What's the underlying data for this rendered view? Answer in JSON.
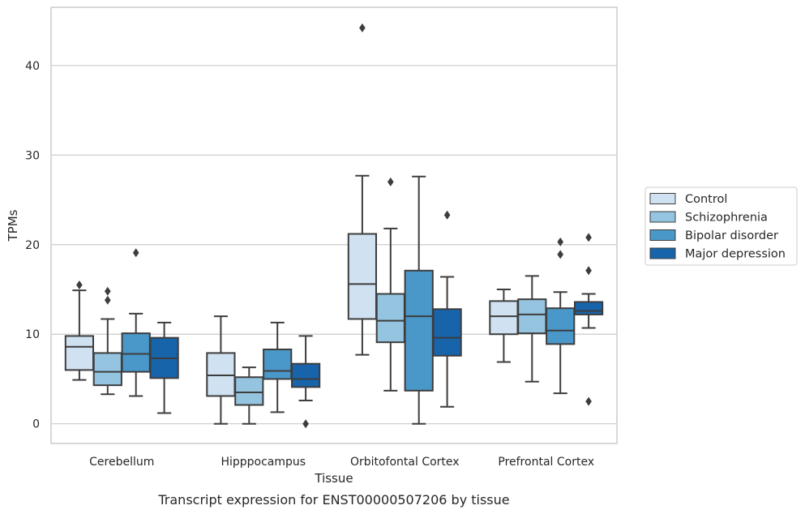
{
  "chart_data": {
    "type": "box",
    "caption": "Transcript expression for ENST00000507206 by tissue",
    "xlabel": "Tissue",
    "ylabel": "TPMs",
    "ylim": [
      -2.2,
      46.5
    ],
    "yticks": [
      0,
      10,
      20,
      30,
      40
    ],
    "grid": "horizontal",
    "legend_position": "right",
    "categories": [
      "Cerebellum",
      "Hipppocampus",
      "Orbitofontal Cortex",
      "Prefrontal Cortex"
    ],
    "series": [
      {
        "name": "Control",
        "color": "#d0e1f2",
        "boxes": [
          {
            "whislo": 4.9,
            "q1": 6.0,
            "med": 8.6,
            "q3": 9.8,
            "whishi": 14.9,
            "fliers": [
              15.5
            ]
          },
          {
            "whislo": 0.0,
            "q1": 3.1,
            "med": 5.4,
            "q3": 7.9,
            "whishi": 12.0,
            "fliers": []
          },
          {
            "whislo": 7.7,
            "q1": 11.7,
            "med": 15.6,
            "q3": 21.2,
            "whishi": 27.7,
            "fliers": [
              44.2
            ]
          },
          {
            "whislo": 6.9,
            "q1": 10.0,
            "med": 12.0,
            "q3": 13.7,
            "whishi": 15.0,
            "fliers": []
          }
        ]
      },
      {
        "name": "Schizophrenia",
        "color": "#94c4df",
        "boxes": [
          {
            "whislo": 3.3,
            "q1": 4.3,
            "med": 5.8,
            "q3": 7.9,
            "whishi": 11.7,
            "fliers": [
              13.8,
              14.8
            ]
          },
          {
            "whislo": 0.0,
            "q1": 2.1,
            "med": 3.5,
            "q3": 5.2,
            "whishi": 6.3,
            "fliers": []
          },
          {
            "whislo": 3.7,
            "q1": 9.1,
            "med": 11.5,
            "q3": 14.5,
            "whishi": 21.8,
            "fliers": [
              27.0
            ]
          },
          {
            "whislo": 4.7,
            "q1": 10.1,
            "med": 12.2,
            "q3": 13.9,
            "whishi": 16.5,
            "fliers": []
          }
        ]
      },
      {
        "name": "Bipolar disorder",
        "color": "#4a98c9",
        "boxes": [
          {
            "whislo": 3.1,
            "q1": 5.8,
            "med": 7.8,
            "q3": 10.1,
            "whishi": 12.3,
            "fliers": [
              19.1
            ]
          },
          {
            "whislo": 1.3,
            "q1": 5.0,
            "med": 5.9,
            "q3": 8.3,
            "whishi": 11.3,
            "fliers": []
          },
          {
            "whislo": 0.0,
            "q1": 3.7,
            "med": 12.0,
            "q3": 17.1,
            "whishi": 27.6,
            "fliers": []
          },
          {
            "whislo": 3.4,
            "q1": 8.9,
            "med": 10.4,
            "q3": 12.9,
            "whishi": 14.7,
            "fliers": [
              18.9,
              20.3
            ]
          }
        ]
      },
      {
        "name": "Major depression",
        "color": "#1764ab",
        "boxes": [
          {
            "whislo": 1.2,
            "q1": 5.1,
            "med": 7.3,
            "q3": 9.6,
            "whishi": 11.3,
            "fliers": []
          },
          {
            "whislo": 2.6,
            "q1": 4.1,
            "med": 5.0,
            "q3": 6.7,
            "whishi": 9.8,
            "fliers": [
              0.0
            ]
          },
          {
            "whislo": 1.9,
            "q1": 7.6,
            "med": 9.6,
            "q3": 12.8,
            "whishi": 16.4,
            "fliers": [
              23.3
            ]
          },
          {
            "whislo": 10.7,
            "q1": 12.2,
            "med": 12.6,
            "q3": 13.6,
            "whishi": 14.5,
            "fliers": [
              2.5,
              17.1,
              20.8
            ]
          }
        ]
      }
    ]
  }
}
